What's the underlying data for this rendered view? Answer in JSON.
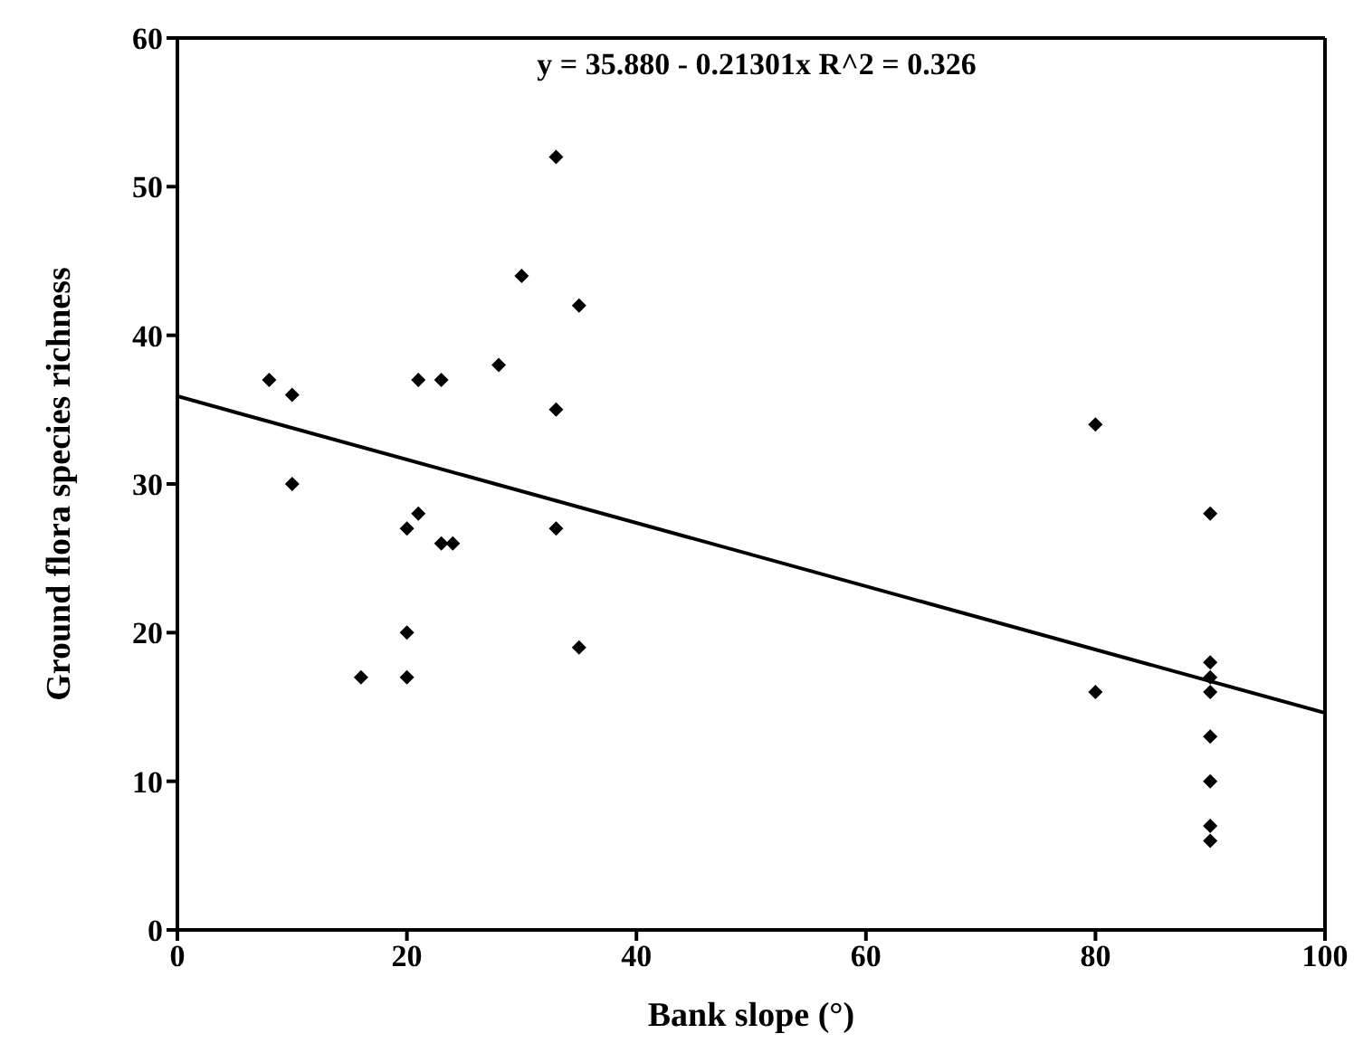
{
  "chart_data": {
    "type": "scatter",
    "xlabel": "Bank slope (°)",
    "ylabel": "Ground flora species richness",
    "annotations": [
      "y = 35.880 - 0.21301x   R^2 = 0.326"
    ],
    "xlim": [
      0,
      100
    ],
    "xticks": [
      0,
      20,
      40,
      60,
      80,
      100
    ],
    "ylim": [
      0,
      60
    ],
    "yticks": [
      0,
      10,
      20,
      30,
      40,
      50,
      60
    ],
    "legend": false,
    "marker": "diamond",
    "series": [
      {
        "color": "#000000",
        "x": [
          8,
          10,
          10,
          16,
          20,
          20,
          20,
          21,
          21,
          23,
          23,
          24,
          28,
          30,
          33,
          33,
          33,
          35,
          35,
          80,
          80,
          90,
          90,
          90,
          90,
          90,
          90,
          90,
          90
        ],
        "values": [
          37,
          36,
          30,
          17,
          27,
          20,
          17,
          37,
          28,
          37,
          26,
          26,
          38,
          44,
          52,
          35,
          27,
          42,
          19,
          34,
          16,
          28,
          18,
          17,
          16,
          13,
          10,
          7,
          6
        ]
      },
      {
        "type": "line",
        "color": "#000000",
        "x": [
          0,
          100
        ],
        "values": [
          35.9,
          14.6
        ],
        "marker": "none",
        "line_style": "solid"
      }
    ]
  }
}
